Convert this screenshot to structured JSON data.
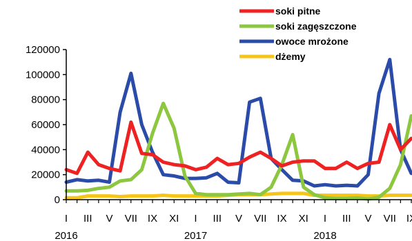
{
  "chart_data": {
    "type": "line",
    "title": "",
    "xlabel": "",
    "ylabel": "",
    "ylim": [
      0,
      120000
    ],
    "y_ticks": [
      0,
      20000,
      40000,
      60000,
      80000,
      100000,
      120000
    ],
    "y_tick_labels": [
      "0",
      "20000",
      "40000",
      "60000",
      "80000",
      "100000",
      "120000"
    ],
    "x_tick_labels": [
      "I",
      "III",
      "V",
      "VII",
      "IX",
      "XI",
      "I",
      "III",
      "V",
      "VII",
      "IX",
      "XI",
      "I",
      "III",
      "V",
      "VII",
      "IX"
    ],
    "x_tick_months": [
      0,
      2,
      4,
      6,
      8,
      10,
      12,
      14,
      16,
      18,
      20,
      22,
      24,
      26,
      28,
      30,
      32
    ],
    "year_labels": [
      {
        "label": "2016",
        "month": 0
      },
      {
        "label": "2017",
        "month": 12
      },
      {
        "label": "2018",
        "month": 24
      }
    ],
    "x": [
      "I 2016",
      "II 2016",
      "III 2016",
      "IV 2016",
      "V 2016",
      "VI 2016",
      "VII 2016",
      "VIII 2016",
      "IX 2016",
      "X 2016",
      "XI 2016",
      "XII 2016",
      "I 2017",
      "II 2017",
      "III 2017",
      "IV 2017",
      "V 2017",
      "VI 2017",
      "VII 2017",
      "VIII 2017",
      "IX 2017",
      "X 2017",
      "XI 2017",
      "XII 2017",
      "I 2018",
      "II 2018",
      "III 2018",
      "IV 2018",
      "V 2018",
      "VI 2018",
      "VII 2018",
      "VIII 2018",
      "IX 2018"
    ],
    "legend_position": "top-right",
    "grid": false,
    "series": [
      {
        "name": "soki pitne",
        "color": "#ee2222",
        "values": [
          24000,
          21000,
          38000,
          28000,
          25000,
          23000,
          62000,
          37000,
          36000,
          30000,
          28000,
          27000,
          24000,
          26000,
          33000,
          28000,
          29000,
          34000,
          38000,
          33000,
          27000,
          30000,
          31000,
          31000,
          25000,
          25000,
          30000,
          25000,
          29000,
          30000,
          60000,
          40000,
          49000
        ]
      },
      {
        "name": "soki zagęszczone",
        "color": "#8dc63f",
        "values": [
          7000,
          7000,
          7500,
          9000,
          10000,
          15000,
          16000,
          24000,
          53000,
          77000,
          57000,
          19000,
          5000,
          4000,
          4000,
          4000,
          4500,
          5000,
          4000,
          10000,
          28000,
          52000,
          10000,
          4000,
          1500,
          1000,
          1000,
          1500,
          500,
          2000,
          9000,
          28000,
          67000
        ]
      },
      {
        "name": "owoce mrożone",
        "color": "#2b4ba9",
        "values": [
          14000,
          16000,
          15000,
          15500,
          14000,
          70000,
          101000,
          60000,
          38000,
          20000,
          19000,
          17000,
          17000,
          17500,
          21000,
          14000,
          13500,
          78000,
          81000,
          33000,
          24000,
          15500,
          15000,
          11000,
          12000,
          11000,
          11500,
          11000,
          20000,
          85000,
          112000,
          40000,
          21000
        ]
      },
      {
        "name": "dżemy",
        "color": "#f5c518",
        "values": [
          1500,
          1500,
          3000,
          3000,
          3000,
          2500,
          3000,
          3000,
          3000,
          3500,
          3000,
          3000,
          3000,
          3000,
          3000,
          3500,
          4000,
          4000,
          4000,
          4500,
          5000,
          5000,
          5000,
          3500,
          3500,
          3500,
          3500,
          3500,
          3000,
          3000,
          3500,
          3500,
          3500
        ]
      }
    ]
  }
}
